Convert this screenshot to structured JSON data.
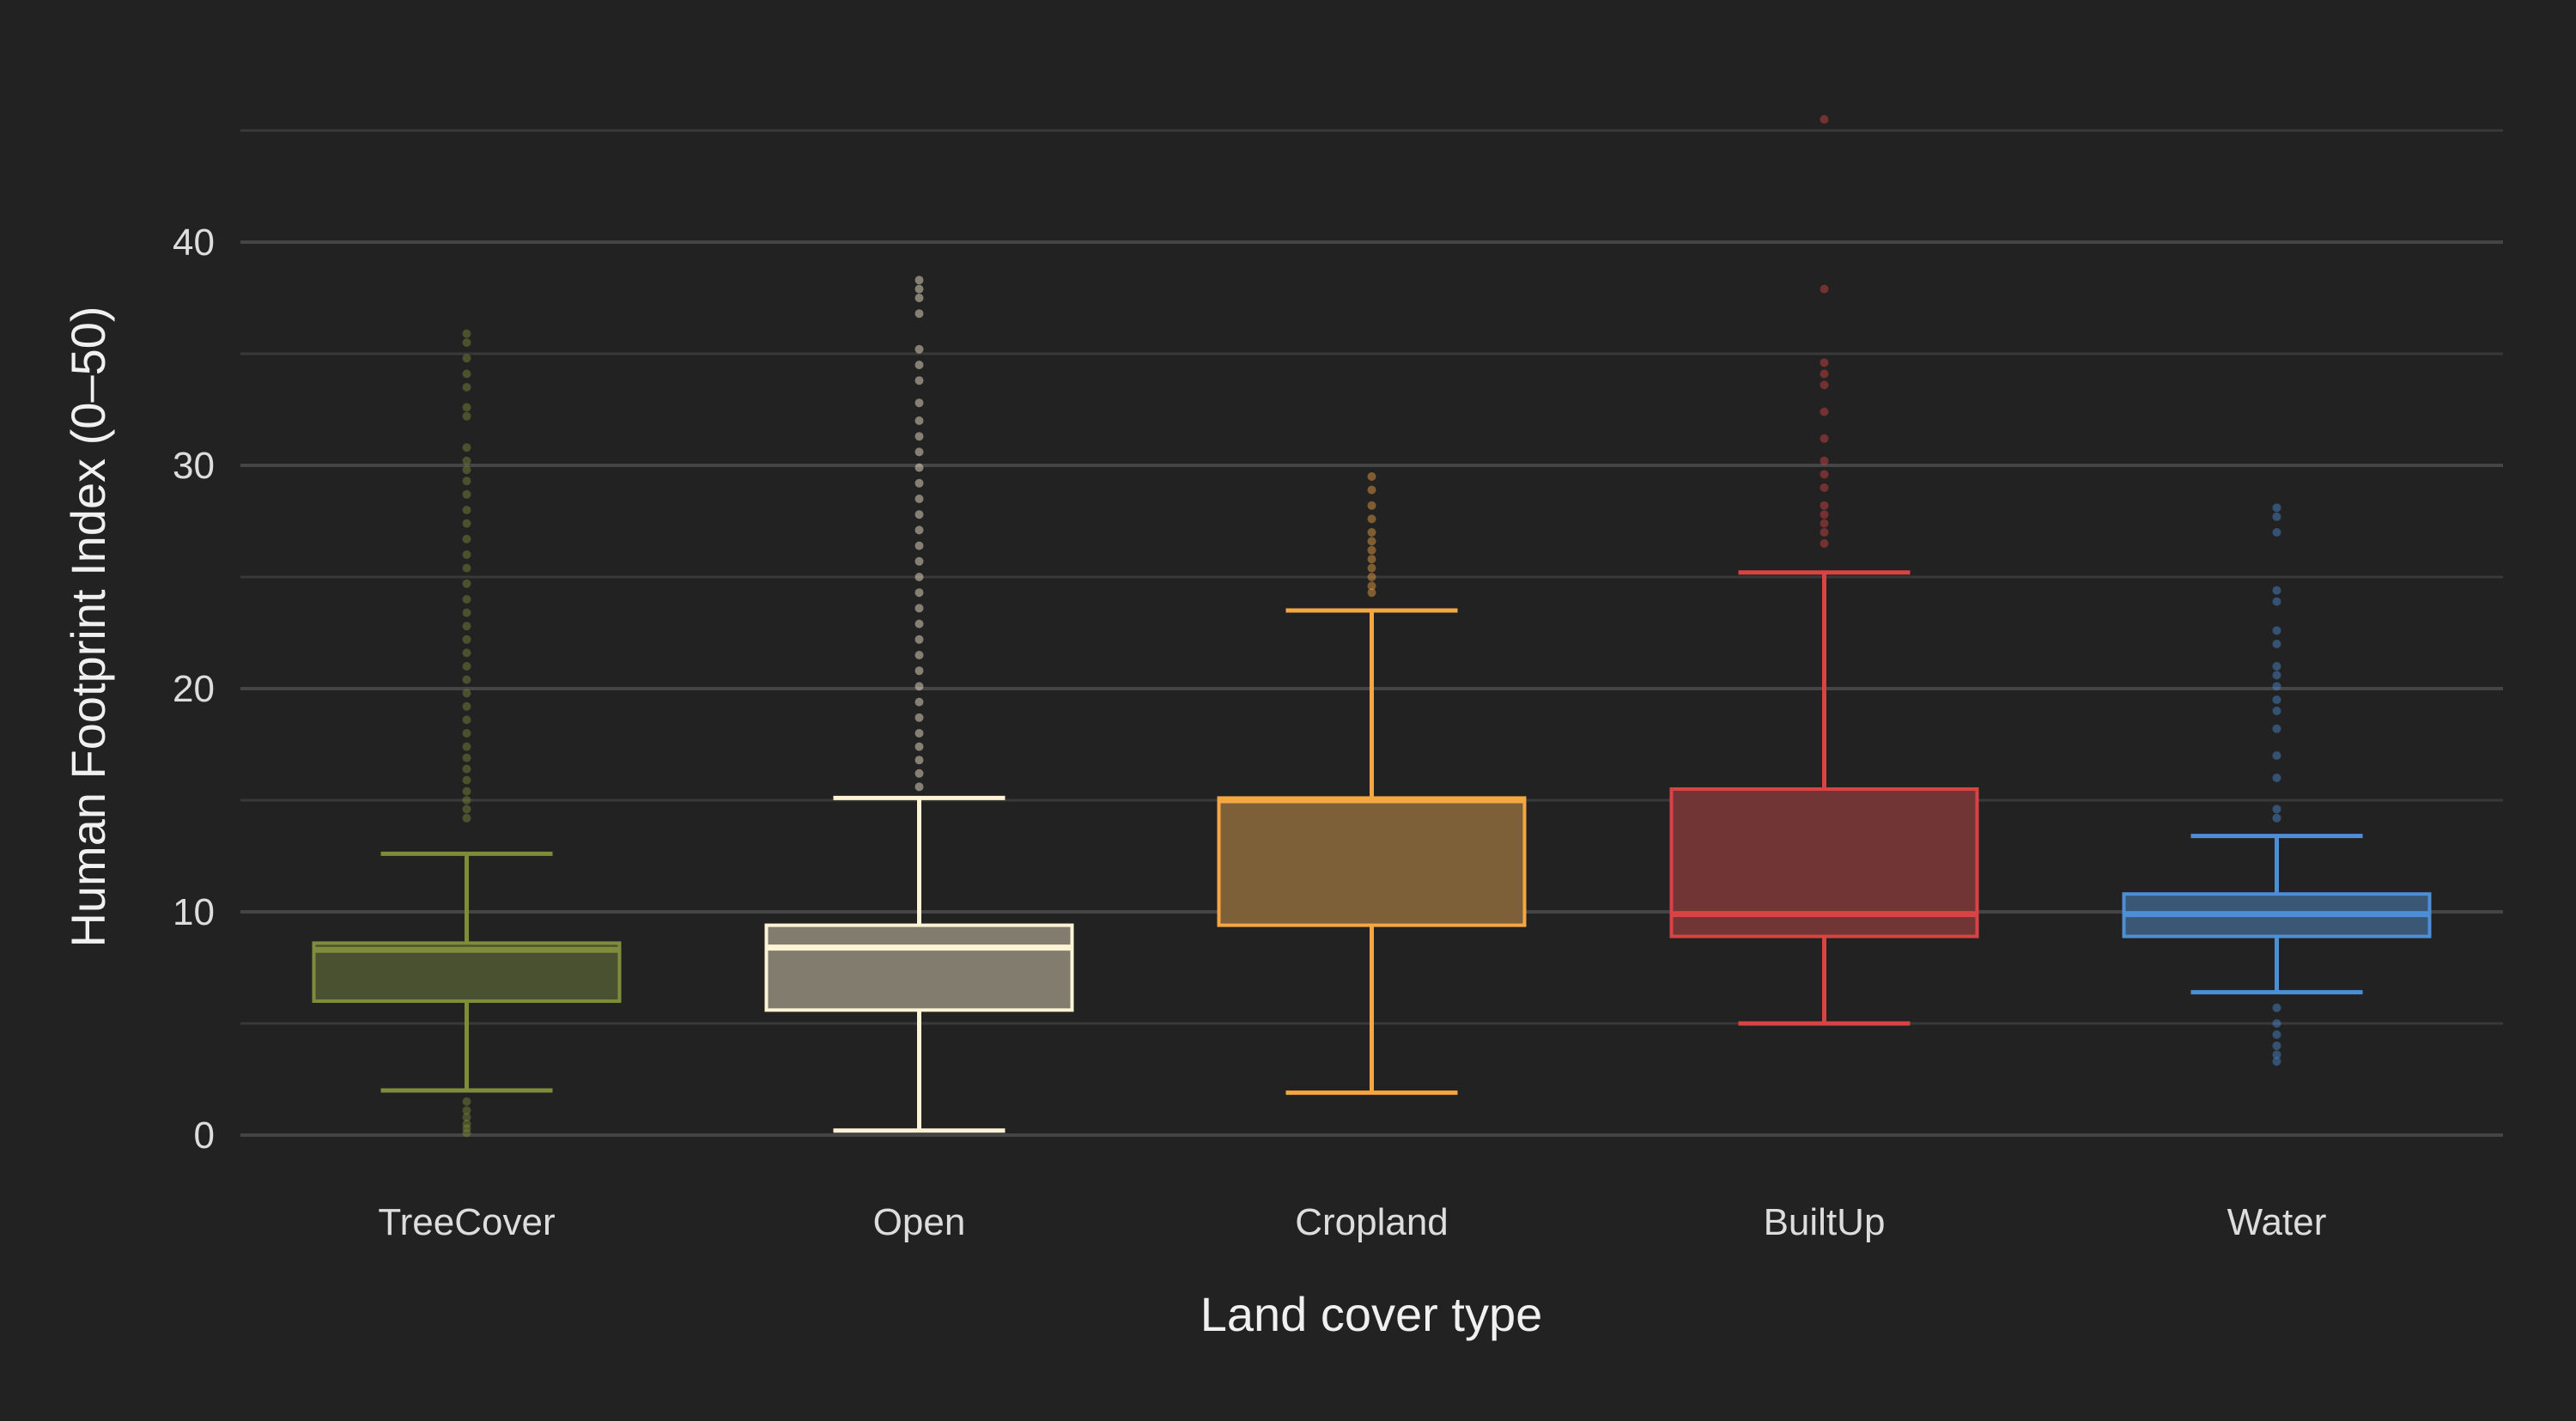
{
  "chart_data": {
    "type": "boxplot",
    "title": "",
    "xlabel": "Land cover type",
    "ylabel": "Human Footprint Index (0–50)",
    "ylim": [
      0,
      45
    ],
    "yticks": [
      0,
      10,
      20,
      30,
      40
    ],
    "grid": true,
    "legend": "none",
    "categories": [
      "TreeCover",
      "Open",
      "Cropland",
      "BuiltUp",
      "Water"
    ],
    "boxes": [
      {
        "name": "TreeCover",
        "color": "#7f8c3a",
        "fill": "#4a5130",
        "whisker_low": 2.0,
        "q1": 6.0,
        "median": 8.3,
        "q3": 8.6,
        "whisker_high": 12.6,
        "outliers": [
          0.1,
          0.3,
          0.5,
          0.8,
          1.1,
          1.5,
          14.2,
          14.6,
          15.0,
          15.4,
          15.9,
          16.4,
          16.9,
          17.4,
          18.0,
          18.6,
          19.2,
          19.8,
          20.4,
          21.0,
          21.6,
          22.2,
          22.8,
          23.4,
          24.0,
          24.7,
          25.4,
          26.0,
          26.7,
          27.4,
          28.0,
          28.7,
          29.3,
          29.8,
          30.2,
          30.8,
          32.2,
          32.6,
          33.5,
          34.1,
          34.8,
          35.5,
          35.9
        ]
      },
      {
        "name": "Open",
        "color": "#fff3d6",
        "fill": "#817c6e",
        "whisker_low": 0.2,
        "q1": 5.6,
        "median": 8.4,
        "q3": 9.4,
        "whisker_high": 15.1,
        "outliers": [
          15.6,
          16.2,
          16.8,
          17.4,
          18.0,
          18.7,
          19.4,
          20.1,
          20.8,
          21.5,
          22.2,
          22.9,
          23.6,
          24.3,
          25.0,
          25.7,
          26.4,
          27.1,
          27.8,
          28.5,
          29.2,
          29.9,
          30.6,
          31.3,
          32.0,
          32.8,
          33.8,
          34.5,
          35.2,
          36.8,
          37.5,
          37.9,
          38.3
        ]
      },
      {
        "name": "Cropland",
        "color": "#f5a742",
        "fill": "#7d6037",
        "whisker_low": 1.9,
        "q1": 9.4,
        "median": 15.0,
        "q3": 15.1,
        "whisker_high": 23.5,
        "outliers": [
          24.3,
          24.6,
          25.0,
          25.4,
          25.8,
          26.2,
          26.6,
          27.0,
          27.6,
          28.2,
          28.9,
          29.5
        ]
      },
      {
        "name": "BuiltUp",
        "color": "#d84444",
        "fill": "#723536",
        "whisker_low": 5.0,
        "q1": 8.9,
        "median": 9.9,
        "q3": 15.5,
        "whisker_high": 25.2,
        "outliers": [
          26.5,
          27.0,
          27.4,
          27.8,
          28.2,
          29.0,
          29.6,
          30.2,
          31.2,
          32.4,
          33.6,
          34.1,
          34.6,
          37.9,
          45.5
        ]
      },
      {
        "name": "Water",
        "color": "#4d8fd6",
        "fill": "#3a5875",
        "whisker_low": 6.4,
        "q1": 8.9,
        "median": 9.9,
        "q3": 10.8,
        "whisker_high": 13.4,
        "outliers": [
          3.3,
          3.6,
          4.0,
          4.5,
          5.0,
          5.7,
          14.2,
          14.6,
          16.0,
          17.0,
          18.2,
          19.0,
          19.5,
          20.1,
          20.6,
          21.0,
          22.0,
          22.6,
          23.9,
          24.4,
          27.0,
          27.7,
          28.1
        ]
      }
    ]
  }
}
